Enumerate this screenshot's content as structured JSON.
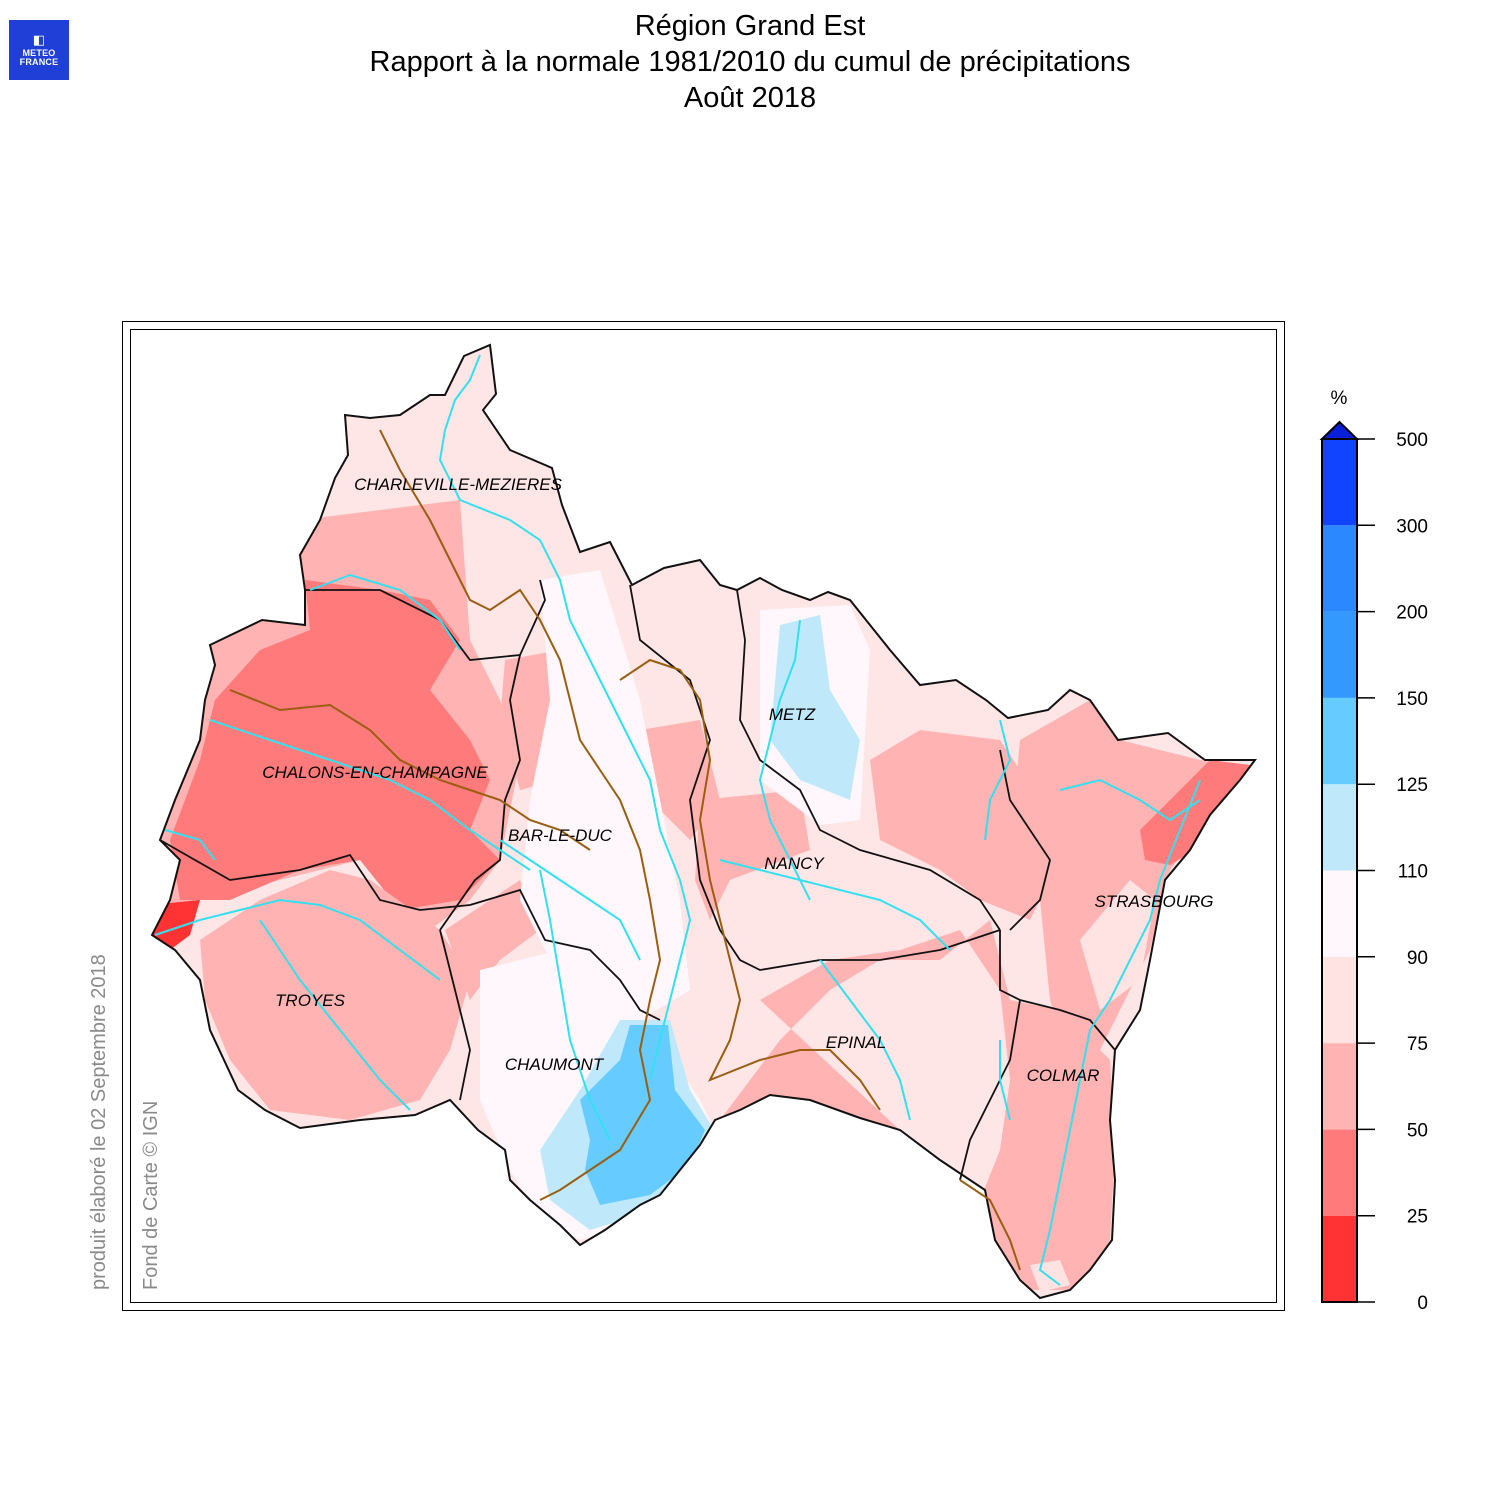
{
  "logo": {
    "line1": "METEO",
    "line2": "FRANCE"
  },
  "title": {
    "line1": "Région Grand Est",
    "line2": "Rapport à la normale 1981/2010 du cumul de précipitations",
    "line3": "Août 2018"
  },
  "side_text": {
    "produit": "produit élaboré le 02 Septembre 2018",
    "fond": "Fond de Carte © IGN"
  },
  "cities": [
    {
      "name": "CHARLEVILLE-MEZIERES"
    },
    {
      "name": "METZ"
    },
    {
      "name": "CHALONS-EN-CHAMPAGNE"
    },
    {
      "name": "BAR-LE-DUC"
    },
    {
      "name": "NANCY"
    },
    {
      "name": "STRASBOURG"
    },
    {
      "name": "TROYES"
    },
    {
      "name": "CHAUMONT"
    },
    {
      "name": "EPINAL"
    },
    {
      "name": "COLMAR"
    }
  ],
  "legend": {
    "unit": "%",
    "ticks": [
      "0",
      "25",
      "50",
      "75",
      "90",
      "110",
      "125",
      "150",
      "200",
      "300",
      "500"
    ],
    "colors": [
      "#ff3333",
      "#ff7a7a",
      "#ffb3b3",
      "#ffe3e3",
      "#fff7fb",
      "#bfe9fb",
      "#66ccff",
      "#3399ff",
      "#2b88ff",
      "#1144ff"
    ],
    "overflow_color": "#0a1fd8"
  },
  "map_colors": {
    "region_fill": "#ffe6e6",
    "dept_border": "#111111",
    "basin_border": "#9a5e12",
    "river": "#33e0f0"
  }
}
